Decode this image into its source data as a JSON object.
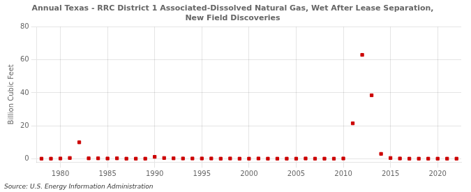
{
  "chart_data": {
    "type": "scatter",
    "title": "Annual Texas - RRC District 1 Associated-Dissolved Natural Gas, Wet After Lease Separation,\nNew Field Discoveries",
    "ylabel": "Billion Cubic Feet",
    "source": "Source: U.S. Energy Information Administration",
    "color": "#cc0000",
    "marker": "square",
    "grid": true,
    "xlim": [
      1977.5,
      2022.5
    ],
    "ylim": [
      -2,
      80
    ],
    "xticks": [
      1980,
      1985,
      1990,
      1995,
      2000,
      2005,
      2010,
      2015,
      2020
    ],
    "yticks": [
      0,
      20,
      40,
      60,
      80
    ],
    "x": [
      1978,
      1979,
      1980,
      1981,
      1982,
      1983,
      1984,
      1985,
      1986,
      1987,
      1988,
      1989,
      1990,
      1991,
      1992,
      1993,
      1994,
      1995,
      1996,
      1997,
      1998,
      1999,
      2000,
      2001,
      2002,
      2003,
      2004,
      2005,
      2006,
      2007,
      2008,
      2009,
      2010,
      2011,
      2012,
      2013,
      2014,
      2015,
      2016,
      2017,
      2018,
      2019,
      2020,
      2021,
      2022
    ],
    "values": [
      0.1,
      0.1,
      0.2,
      0.5,
      10.0,
      0.3,
      0.3,
      0.2,
      0.3,
      0.1,
      0.1,
      0.1,
      1.2,
      0.5,
      0.3,
      0.2,
      0.2,
      0.2,
      0.2,
      0.1,
      0.2,
      0.1,
      0.1,
      0.2,
      0.1,
      0.1,
      0.1,
      0.1,
      0.2,
      0.1,
      0.1,
      0.1,
      0.2,
      21.5,
      63.0,
      38.5,
      3.0,
      0.5,
      0.2,
      0.1,
      0.1,
      0.1,
      0.1,
      0.1,
      0.1
    ]
  }
}
